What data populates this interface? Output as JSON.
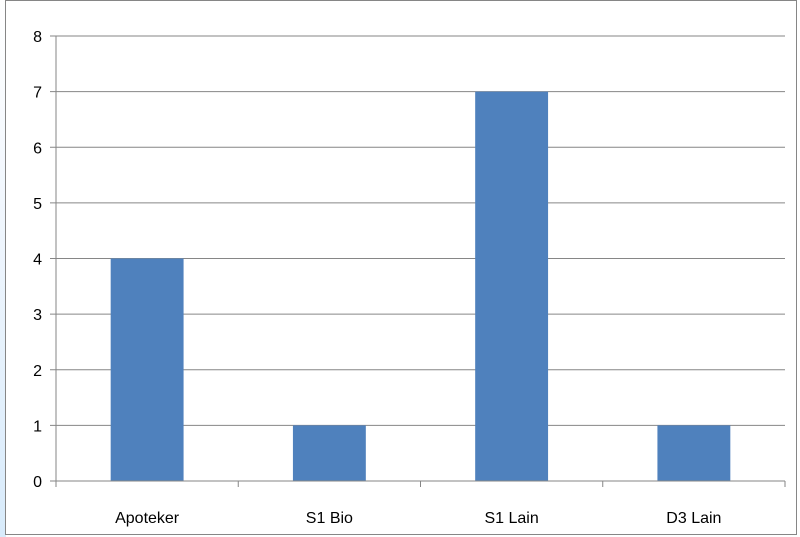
{
  "chart_data": {
    "type": "bar",
    "categories": [
      "Apoteker",
      "S1 Bio",
      "S1 Lain",
      "D3 Lain"
    ],
    "series": [
      {
        "values": [
          4,
          1,
          7,
          1
        ]
      }
    ],
    "title": "",
    "xlabel": "",
    "ylabel": "",
    "ylim": [
      0,
      8
    ],
    "yticks": [
      "0",
      "1",
      "2",
      "3",
      "4",
      "5",
      "6",
      "7",
      "8"
    ],
    "grid": true,
    "legend": "none",
    "colors": {
      "bar": "#4f81bd",
      "grid": "#868686",
      "axis": "#868686"
    }
  }
}
